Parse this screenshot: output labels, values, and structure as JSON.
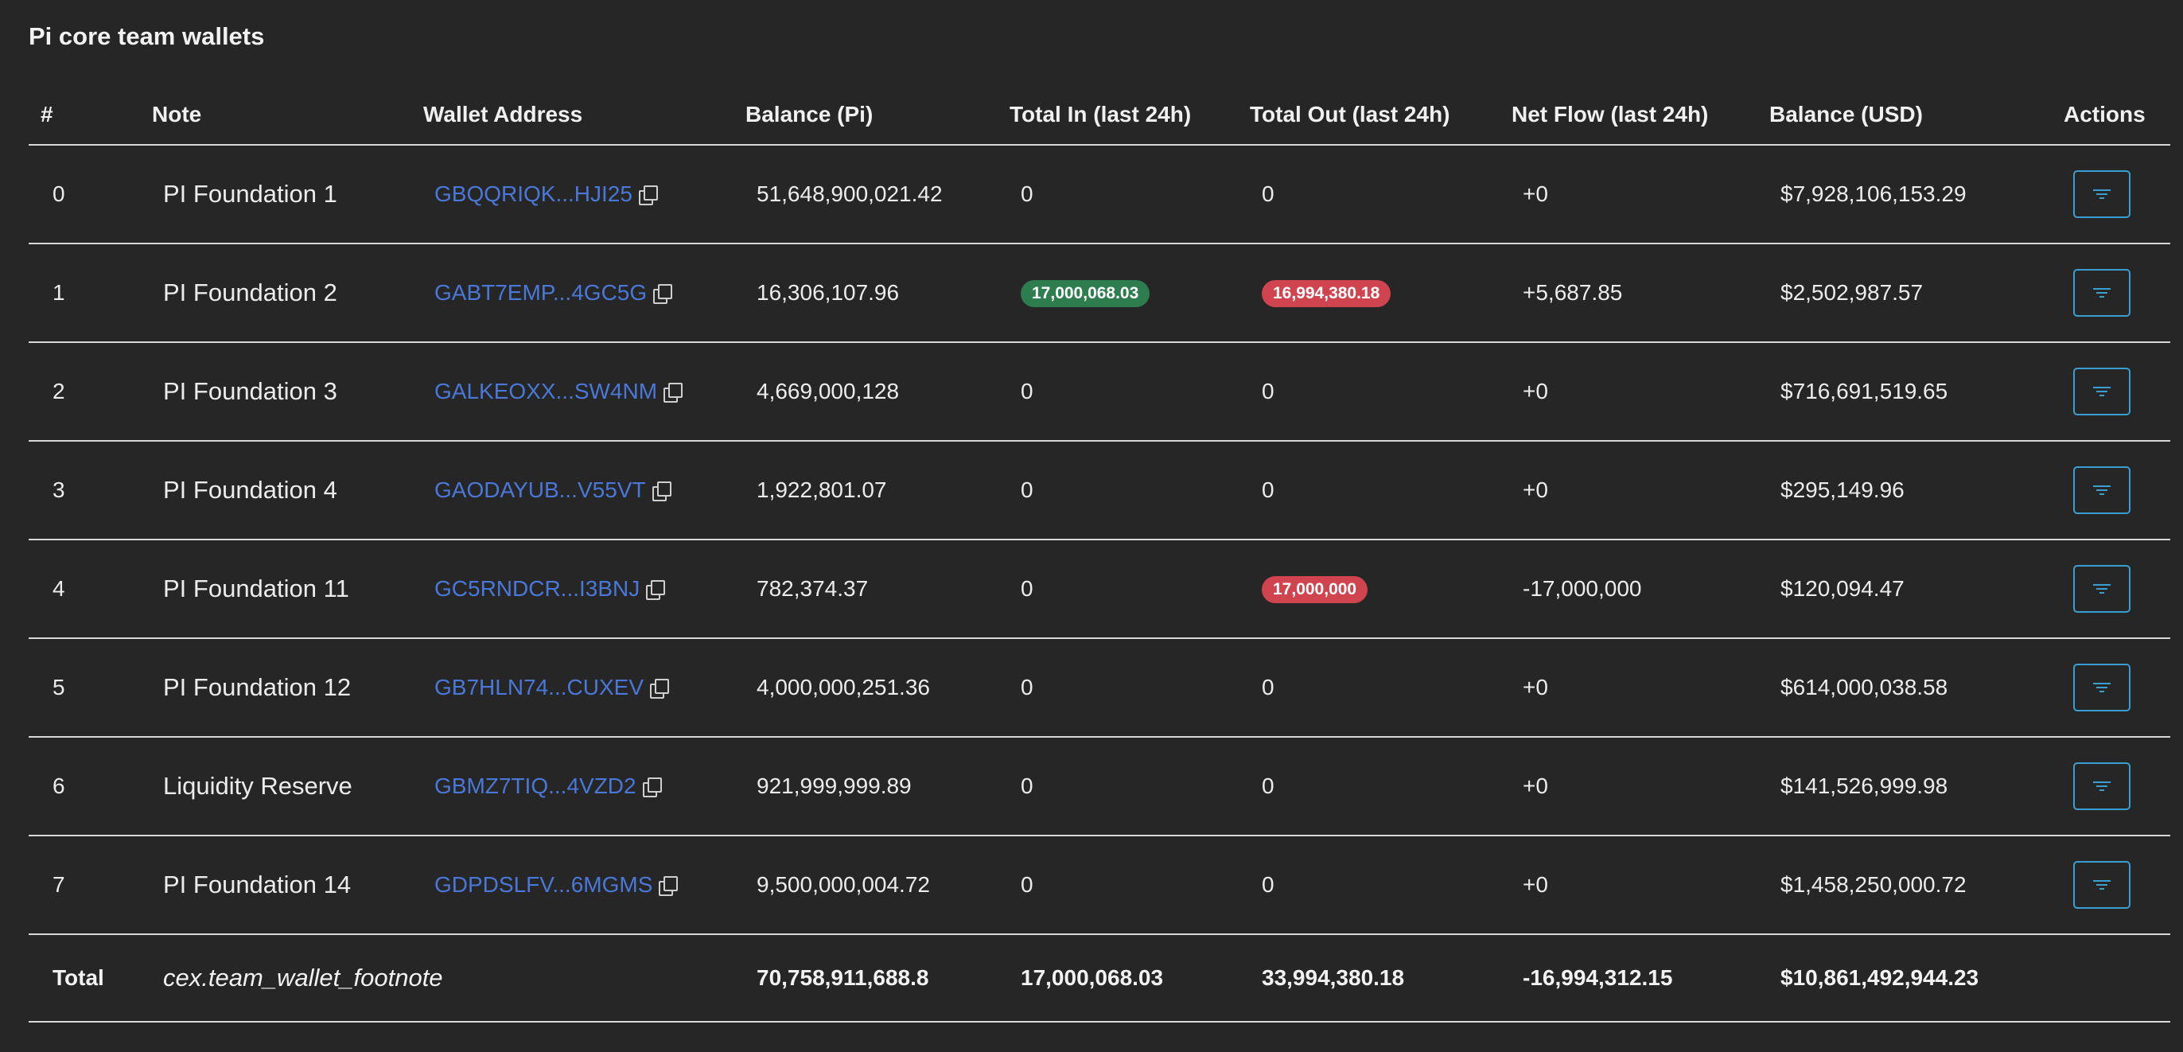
{
  "title": "Pi core team wallets",
  "columns": {
    "index": "#",
    "note": "Note",
    "address": "Wallet Address",
    "balance_pi": "Balance (Pi)",
    "total_in": "Total In (last 24h)",
    "total_out": "Total Out (last 24h)",
    "net_flow": "Net Flow (last 24h)",
    "balance_usd": "Balance (USD)",
    "actions": "Actions"
  },
  "rows": [
    {
      "index": "0",
      "note": "PI Foundation 1",
      "address": "GBQQRIQK...HJI25",
      "balance_pi": "51,648,900,021.42",
      "total_in": "0",
      "total_out": "0",
      "net_flow": "+0",
      "balance_usd": "$7,928,106,153.29"
    },
    {
      "index": "1",
      "note": "PI Foundation 2",
      "address": "GABT7EMP...4GC5G",
      "balance_pi": "16,306,107.96",
      "total_in": "17,000,068.03",
      "total_out": "16,994,380.18",
      "net_flow": "+5,687.85",
      "balance_usd": "$2,502,987.57"
    },
    {
      "index": "2",
      "note": "PI Foundation 3",
      "address": "GALKEOXX...SW4NM",
      "balance_pi": "4,669,000,128",
      "total_in": "0",
      "total_out": "0",
      "net_flow": "+0",
      "balance_usd": "$716,691,519.65"
    },
    {
      "index": "3",
      "note": "PI Foundation 4",
      "address": "GAODAYUB...V55VT",
      "balance_pi": "1,922,801.07",
      "total_in": "0",
      "total_out": "0",
      "net_flow": "+0",
      "balance_usd": "$295,149.96"
    },
    {
      "index": "4",
      "note": "PI Foundation 11",
      "address": "GC5RNDCR...I3BNJ",
      "balance_pi": "782,374.37",
      "total_in": "0",
      "total_out": "17,000,000",
      "net_flow": "-17,000,000",
      "balance_usd": "$120,094.47"
    },
    {
      "index": "5",
      "note": "PI Foundation 12",
      "address": "GB7HLN74...CUXEV",
      "balance_pi": "4,000,000,251.36",
      "total_in": "0",
      "total_out": "0",
      "net_flow": "+0",
      "balance_usd": "$614,000,038.58"
    },
    {
      "index": "6",
      "note": "Liquidity Reserve",
      "address": "GBMZ7TIQ...4VZD2",
      "balance_pi": "921,999,999.89",
      "total_in": "0",
      "total_out": "0",
      "net_flow": "+0",
      "balance_usd": "$141,526,999.98"
    },
    {
      "index": "7",
      "note": "PI Foundation 14",
      "address": "GDPDSLFV...6MGMS",
      "balance_pi": "9,500,000,004.72",
      "total_in": "0",
      "total_out": "0",
      "net_flow": "+0",
      "balance_usd": "$1,458,250,000.72"
    }
  ],
  "total": {
    "label": "Total",
    "note": "cex.team_wallet_footnote",
    "balance_pi": "70,758,911,688.8",
    "total_in": "17,000,068.03",
    "total_out": "33,994,380.18",
    "net_flow": "-16,994,312.15",
    "balance_usd": "$10,861,492,944.23"
  },
  "colors": {
    "background": "#262626",
    "link": "#4a78d8",
    "badge_in": "#2e7d4f",
    "badge_out": "#d04450",
    "net_positive": "#4c9a58",
    "net_negative": "#d8444f",
    "action_border": "#3a9fd0"
  },
  "icons": {
    "copy": "copy-icon",
    "action": "filter-icon"
  }
}
